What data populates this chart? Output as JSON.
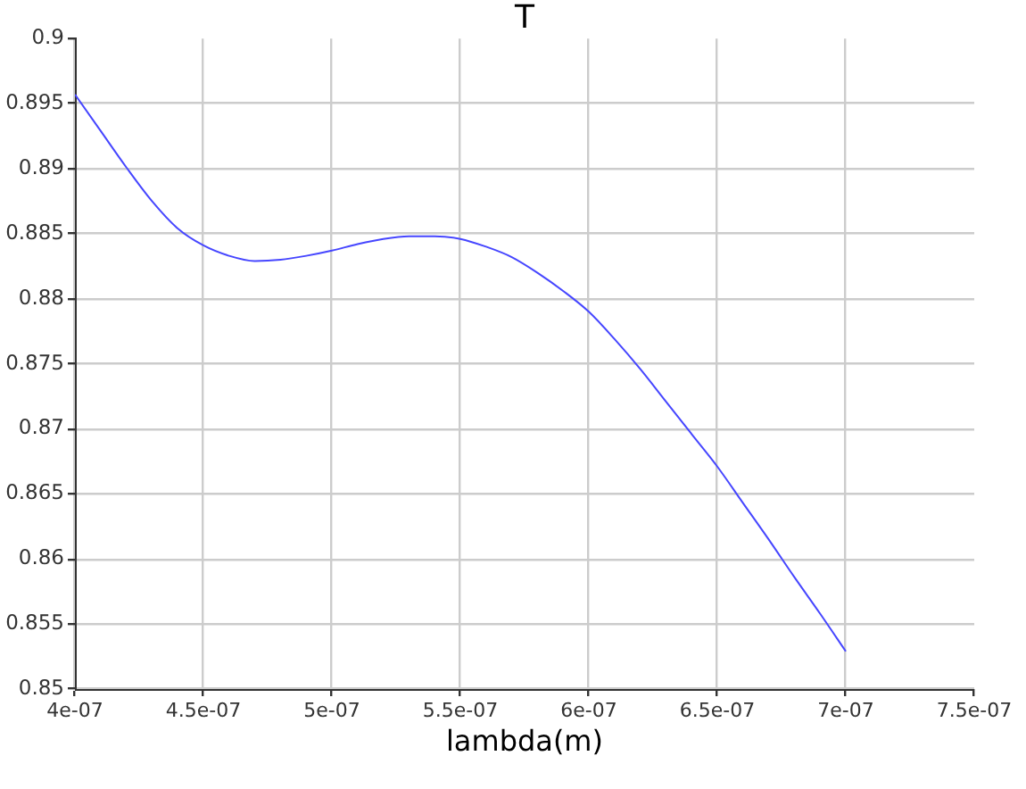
{
  "chart_data": {
    "type": "line",
    "title": "T",
    "xlabel": "lambda(m)",
    "x": [
      4e-07,
      4.1e-07,
      4.2e-07,
      4.3e-07,
      4.4e-07,
      4.5e-07,
      4.6e-07,
      4.7e-07,
      4.8e-07,
      4.9e-07,
      5e-07,
      5.1e-07,
      5.2e-07,
      5.3e-07,
      5.4e-07,
      5.5e-07,
      5.6e-07,
      5.7e-07,
      5.8e-07,
      5.9e-07,
      6e-07,
      6.1e-07,
      6.2e-07,
      6.3e-07,
      6.4e-07,
      6.5e-07,
      6.6e-07,
      6.7e-07,
      6.8e-07,
      6.9e-07,
      7e-07
    ],
    "series": [
      {
        "color": "#4646ff",
        "values": [
          0.8957,
          0.8929,
          0.8901,
          0.8875,
          0.8854,
          0.8841,
          0.8833,
          0.8829,
          0.883,
          0.8833,
          0.8837,
          0.8842,
          0.8846,
          0.8848,
          0.8848,
          0.8846,
          0.884,
          0.8832,
          0.882,
          0.8806,
          0.879,
          0.8769,
          0.8746,
          0.8721,
          0.8696,
          0.8671,
          0.8643,
          0.8615,
          0.8586,
          0.8558,
          0.8529
        ]
      }
    ],
    "xlim": [
      4e-07,
      7.5e-07
    ],
    "xticks": [
      {
        "value": 4e-07,
        "label": "4e-07"
      },
      {
        "value": 4.5e-07,
        "label": "4.5e-07"
      },
      {
        "value": 5e-07,
        "label": "5e-07"
      },
      {
        "value": 5.5e-07,
        "label": "5.5e-07"
      },
      {
        "value": 6e-07,
        "label": "6e-07"
      },
      {
        "value": 6.5e-07,
        "label": "6.5e-07"
      },
      {
        "value": 7e-07,
        "label": "7e-07"
      },
      {
        "value": 7.5e-07,
        "label": "7.5e-07"
      }
    ],
    "ylim": [
      0.85,
      0.9
    ],
    "yticks": [
      0.85,
      0.855,
      0.86,
      0.865,
      0.87,
      0.875,
      0.88,
      0.885,
      0.89,
      0.895,
      0.9
    ],
    "grid": true
  }
}
